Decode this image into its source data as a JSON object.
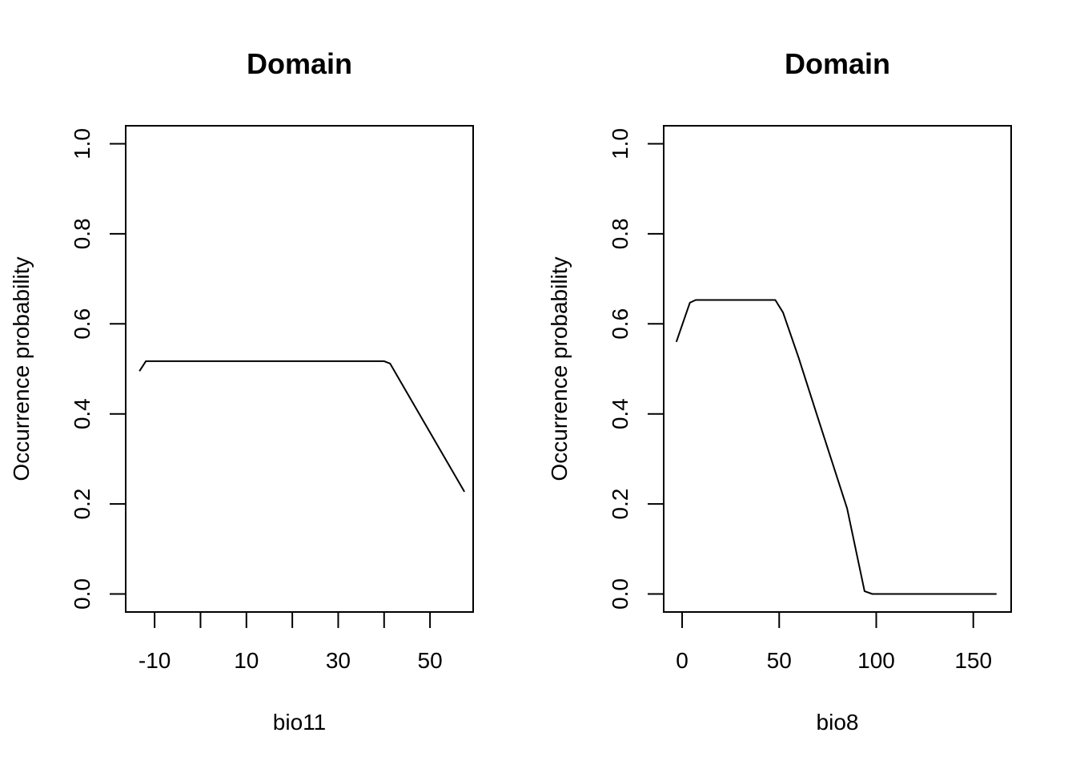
{
  "chart_data": [
    {
      "type": "line",
      "title": "Domain",
      "xlabel": "bio11",
      "ylabel": "Occurrence probability",
      "xlim": [
        -16.3,
        59.4
      ],
      "ylim": [
        -0.04,
        1.04
      ],
      "xticks": [
        -10,
        0,
        10,
        20,
        30,
        40,
        50
      ],
      "xtick_labels": [
        "-10",
        "",
        "10",
        "",
        "30",
        "",
        "50"
      ],
      "yticks": [
        0.0,
        0.2,
        0.4,
        0.6,
        0.8,
        1.0
      ],
      "ytick_labels": [
        "0.0",
        "0.2",
        "0.4",
        "0.6",
        "0.8",
        "1.0"
      ],
      "grid": false,
      "series": [
        {
          "x": [
            -13.3,
            -11.9,
            10,
            30,
            40,
            41.3,
            57.5
          ],
          "y": [
            0.495,
            0.517,
            0.517,
            0.517,
            0.517,
            0.512,
            0.227
          ]
        }
      ]
    },
    {
      "type": "line",
      "title": "Domain",
      "xlabel": "bio8",
      "ylabel": "Occurrence probability",
      "xlim": [
        -9.5,
        169.5
      ],
      "ylim": [
        -0.04,
        1.04
      ],
      "xticks": [
        0,
        50,
        100,
        150
      ],
      "xtick_labels": [
        "0",
        "50",
        "100",
        "150"
      ],
      "yticks": [
        0.0,
        0.2,
        0.4,
        0.6,
        0.8,
        1.0
      ],
      "ytick_labels": [
        "0.0",
        "0.2",
        "0.4",
        "0.6",
        "0.8",
        "1.0"
      ],
      "grid": false,
      "series": [
        {
          "x": [
            -3,
            4,
            7,
            20,
            40,
            48,
            52,
            60,
            70,
            85,
            94,
            98,
            162
          ],
          "y": [
            0.56,
            0.647,
            0.653,
            0.653,
            0.653,
            0.653,
            0.625,
            0.525,
            0.39,
            0.19,
            0.006,
            0.0,
            0.0
          ]
        }
      ]
    }
  ]
}
